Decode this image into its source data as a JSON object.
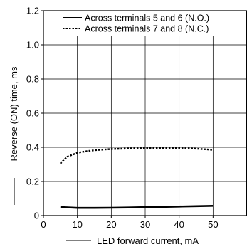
{
  "chart_data": {
    "type": "line",
    "title": "",
    "xlabel": "LED forward current, mA",
    "ylabel": "Reverse (ON) time, ms",
    "xlim": [
      0,
      60
    ],
    "ylim": [
      0,
      1.2
    ],
    "x_ticks": [
      0,
      10,
      20,
      30,
      40,
      50
    ],
    "x_tick_labels": [
      "0",
      "10",
      "20",
      "30",
      "40",
      "50"
    ],
    "y_ticks": [
      0,
      0.2,
      0.4,
      0.6,
      0.8,
      1.0,
      1.2
    ],
    "y_tick_labels": [
      "0",
      "0.2",
      "0.4",
      "0.6",
      "0.8",
      "1.0",
      "1.2"
    ],
    "grid": true,
    "legend": "top-right",
    "series": [
      {
        "name": "Across terminals 5 and 6 (N.O.)",
        "style": "solid",
        "color": "#000000",
        "x": [
          5,
          10,
          15,
          20,
          25,
          30,
          35,
          40,
          45,
          50
        ],
        "y": [
          0.05,
          0.045,
          0.045,
          0.046,
          0.047,
          0.049,
          0.051,
          0.053,
          0.055,
          0.057
        ]
      },
      {
        "name": "Across terminals 7 and 8 (N.C.)",
        "style": "dotted",
        "color": "#000000",
        "x": [
          5,
          7,
          10,
          13,
          15,
          20,
          25,
          30,
          35,
          40,
          45,
          48,
          50
        ],
        "y": [
          0.305,
          0.345,
          0.368,
          0.378,
          0.383,
          0.39,
          0.393,
          0.395,
          0.395,
          0.395,
          0.392,
          0.388,
          0.385
        ]
      }
    ]
  }
}
